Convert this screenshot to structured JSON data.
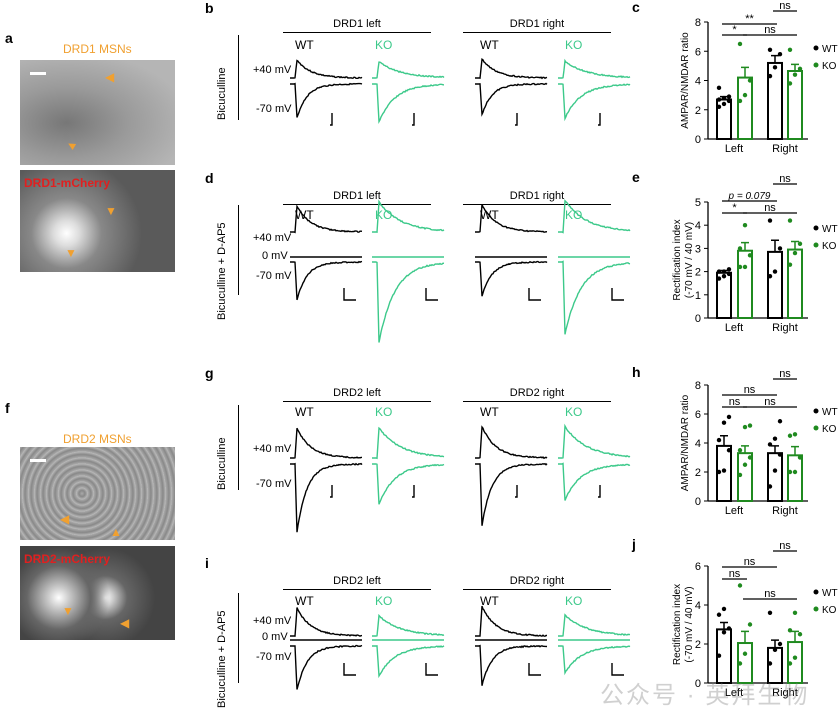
{
  "panels": {
    "a": {
      "label": "a",
      "title": "DRD1 MSNs",
      "image_label": "DRD1-mCherry"
    },
    "b": {
      "label": "b",
      "left": "DRD1 left",
      "right": "DRD1 right",
      "condition": "Bicuculline",
      "v1": "+40 mV",
      "v2": "-70 mV",
      "wt": "WT",
      "ko": "KO"
    },
    "d": {
      "label": "d",
      "left": "DRD1 left",
      "right": "DRD1 right",
      "condition": "Bicuculline + D-AP5",
      "v1": "+40 mV",
      "v0": "0 mV",
      "v2": "-70 mV",
      "wt": "WT",
      "ko": "KO"
    },
    "f": {
      "label": "f",
      "title": "DRD2 MSNs",
      "image_label": "DRD2-mCherry"
    },
    "g": {
      "label": "g",
      "left": "DRD2 left",
      "right": "DRD2 right",
      "condition": "Bicuculline",
      "v1": "+40 mV",
      "v2": "-70 mV",
      "wt": "WT",
      "ko": "KO"
    },
    "i": {
      "label": "i",
      "left": "DRD2 left",
      "right": "DRD2 right",
      "condition": "Bicuculline + D-AP5",
      "v1": "+40 mV",
      "v0": "0 mV",
      "v2": "-70 mV",
      "wt": "WT",
      "ko": "KO"
    }
  },
  "colors": {
    "wt": "#000000",
    "ko_bar": "#1f8a1f",
    "ko_trace": "#3cc98a",
    "title_orange": "#f0a030",
    "label_red": "#e02020",
    "arrow": "#f0a030"
  },
  "watermark": "公众号 · 英拜生物",
  "chart_data": [
    {
      "panel": "c",
      "type": "bar",
      "ylabel": "AMPAR/NMDAR ratio",
      "ylim": [
        0,
        8
      ],
      "yticks": [
        0,
        2,
        4,
        6,
        8
      ],
      "categories": [
        "Left",
        "Right"
      ],
      "legend": [
        "WT",
        "KO"
      ],
      "legend_position": "right",
      "series": [
        {
          "name": "WT",
          "means": [
            2.7,
            5.2
          ],
          "sem": [
            0.2,
            0.5
          ],
          "points": [
            [
              2.2,
              2.4,
              2.6,
              2.7,
              2.8,
              2.9,
              3.5
            ],
            [
              4.3,
              4.9,
              5.8,
              6.1
            ]
          ]
        },
        {
          "name": "KO",
          "means": [
            4.2,
            4.65
          ],
          "sem": [
            0.7,
            0.45
          ],
          "points": [
            [
              2.6,
              3.0,
              4.0,
              6.5
            ],
            [
              3.8,
              4.4,
              4.8,
              6.1
            ]
          ]
        }
      ],
      "significance": [
        {
          "pair": [
            "Left WT",
            "Left KO"
          ],
          "text": "*"
        },
        {
          "pair": [
            "Left WT",
            "Right WT"
          ],
          "text": "**"
        },
        {
          "pair": [
            "Right WT",
            "Right KO"
          ],
          "text": "ns"
        },
        {
          "pair": [
            "Left KO",
            "Right KO"
          ],
          "text": "ns"
        }
      ]
    },
    {
      "panel": "e",
      "type": "bar",
      "ylabel": "Rectification index",
      "ylabel2": "(-70 mV / 40 mV)",
      "ylim": [
        0,
        5
      ],
      "yticks": [
        0,
        1,
        2,
        3,
        4,
        5
      ],
      "categories": [
        "Left",
        "Right"
      ],
      "legend": [
        "WT",
        "KO"
      ],
      "legend_position": "right",
      "series": [
        {
          "name": "WT",
          "means": [
            1.95,
            2.85
          ],
          "sem": [
            0.1,
            0.5
          ],
          "points": [
            [
              1.7,
              1.8,
              1.9,
              2.0,
              2.0,
              2.1
            ],
            [
              1.8,
              2.0,
              3.0,
              4.2
            ]
          ]
        },
        {
          "name": "KO",
          "means": [
            2.9,
            2.95
          ],
          "sem": [
            0.35,
            0.35
          ],
          "points": [
            [
              2.2,
              2.2,
              2.7,
              3.0,
              4.0
            ],
            [
              2.3,
              2.8,
              3.2,
              4.2
            ]
          ]
        }
      ],
      "significance": [
        {
          "pair": [
            "Left WT",
            "Left KO"
          ],
          "text": "*"
        },
        {
          "pair": [
            "Left WT",
            "Right WT"
          ],
          "text": "p = 0.079"
        },
        {
          "pair": [
            "Right WT",
            "Right KO"
          ],
          "text": "ns"
        },
        {
          "pair": [
            "Left KO",
            "Right KO"
          ],
          "text": "ns"
        }
      ]
    },
    {
      "panel": "h",
      "type": "bar",
      "ylabel": "AMPAR/NMDAR ratio",
      "ylim": [
        0,
        8
      ],
      "yticks": [
        0,
        2,
        4,
        6,
        8
      ],
      "categories": [
        "Left",
        "Right"
      ],
      "legend": [
        "WT",
        "KO"
      ],
      "legend_position": "right",
      "series": [
        {
          "name": "WT",
          "means": [
            3.8,
            3.3
          ],
          "sem": [
            0.7,
            0.5
          ],
          "points": [
            [
              2.0,
              2.1,
              3.5,
              4.2,
              5.4,
              5.8
            ],
            [
              1.0,
              2.1,
              3.2,
              3.9,
              4.3,
              5.5
            ]
          ]
        },
        {
          "name": "KO",
          "means": [
            3.3,
            3.15
          ],
          "sem": [
            0.5,
            0.6
          ],
          "points": [
            [
              1.8,
              2.5,
              3.0,
              3.5,
              5.1,
              5.2
            ],
            [
              2.0,
              2.0,
              3.0,
              4.5,
              4.6
            ]
          ]
        }
      ],
      "significance": [
        {
          "pair": [
            "Left WT",
            "Left KO"
          ],
          "text": "ns"
        },
        {
          "pair": [
            "Left WT",
            "Right WT"
          ],
          "text": "ns"
        },
        {
          "pair": [
            "Right WT",
            "Right KO"
          ],
          "text": "ns"
        },
        {
          "pair": [
            "Left KO",
            "Right KO"
          ],
          "text": "ns"
        }
      ]
    },
    {
      "panel": "j",
      "type": "bar",
      "ylabel": "Rectification index",
      "ylabel2": "(-70 mV / 40 mV)",
      "ylim": [
        0,
        6
      ],
      "yticks": [
        0,
        2,
        4,
        6
      ],
      "categories": [
        "Left",
        "Right"
      ],
      "legend": [
        "WT",
        "KO"
      ],
      "legend_position": "right",
      "series": [
        {
          "name": "WT",
          "means": [
            2.75,
            1.8
          ],
          "sem": [
            0.35,
            0.4
          ],
          "points": [
            [
              1.4,
              2.6,
              2.8,
              3.5,
              3.8
            ],
            [
              1.0,
              1.7,
              2.0,
              3.6
            ]
          ]
        },
        {
          "name": "KO",
          "means": [
            2.05,
            2.1
          ],
          "sem": [
            0.6,
            0.55
          ],
          "points": [
            [
              1.0,
              1.5,
              3.0,
              5.0
            ],
            [
              1.0,
              1.3,
              2.5,
              2.7,
              3.6
            ]
          ]
        }
      ],
      "significance": [
        {
          "pair": [
            "Left WT",
            "Left KO"
          ],
          "text": "ns"
        },
        {
          "pair": [
            "Left WT",
            "Right WT"
          ],
          "text": "ns"
        },
        {
          "pair": [
            "Right WT",
            "Right KO"
          ],
          "text": "ns"
        },
        {
          "pair": [
            "Left KO",
            "Right KO"
          ],
          "text": "ns"
        }
      ]
    }
  ]
}
